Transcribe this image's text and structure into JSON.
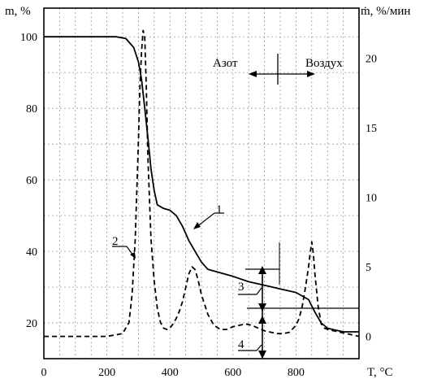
{
  "chart_data": {
    "type": "line",
    "title": "",
    "xlabel": "T, °C",
    "ylabel_left": "m, %",
    "ylabel_right": "ṁ, %/мин",
    "xlim": [
      0,
      1000
    ],
    "ylim_left": [
      10,
      108
    ],
    "ylim_right": [
      -1.6,
      23.6
    ],
    "grid": true,
    "legend": "none",
    "x_ticks": [
      "0",
      "200",
      "400",
      "600",
      "800"
    ],
    "y_left_ticks": [
      "20",
      "40",
      "60",
      "80",
      "100"
    ],
    "y_right_ticks": [
      "0",
      "5",
      "10",
      "15",
      "20"
    ],
    "series": [
      {
        "axis": "left",
        "style": "solid",
        "x": [
          0,
          120,
          230,
          260,
          285,
          300,
          310,
          320,
          330,
          340,
          350,
          360,
          380,
          400,
          420,
          440,
          460,
          480,
          500,
          520,
          540,
          600,
          650,
          700,
          750,
          800,
          840,
          860,
          880,
          900,
          950,
          1000
        ],
        "y": [
          100,
          100,
          100,
          99.5,
          97,
          93,
          88,
          80,
          72,
          63,
          57,
          53,
          52,
          51.5,
          50,
          47,
          43,
          40,
          37,
          35,
          34.5,
          33,
          31.5,
          30.5,
          29.5,
          28.5,
          26.5,
          23,
          20,
          18.5,
          17.5,
          17.5
        ]
      },
      {
        "axis": "right",
        "style": "dashed",
        "x": [
          0,
          200,
          250,
          270,
          280,
          290,
          300,
          305,
          310,
          315,
          320,
          325,
          330,
          340,
          350,
          360,
          370,
          380,
          390,
          400,
          410,
          420,
          430,
          440,
          450,
          460,
          470,
          480,
          490,
          500,
          520,
          540,
          560,
          580,
          600,
          620,
          640,
          660,
          680,
          700,
          720,
          740,
          760,
          780,
          800,
          810,
          820,
          830,
          840,
          845,
          850,
          855,
          860,
          870,
          880,
          890,
          900,
          920,
          940,
          960,
          1000
        ],
        "y": [
          0,
          0,
          0.2,
          1,
          3,
          7,
          14,
          18,
          20.5,
          22,
          21.5,
          18,
          13,
          7,
          4,
          2,
          1,
          0.6,
          0.5,
          0.6,
          0.9,
          1.3,
          1.8,
          2.5,
          3.5,
          4.5,
          5,
          4.8,
          4,
          3,
          1.6,
          0.8,
          0.5,
          0.5,
          0.7,
          0.8,
          0.9,
          0.8,
          0.6,
          0.4,
          0.3,
          0.2,
          0.2,
          0.3,
          0.8,
          1.3,
          2.2,
          3.5,
          5,
          6,
          6.8,
          6,
          4.5,
          2.2,
          0.9,
          0.6,
          0.5,
          0.4,
          0.3,
          0.2,
          0
        ]
      }
    ],
    "annotations": [
      {
        "text": "Азот",
        "x": 720,
        "y": 96
      },
      {
        "text": "Воздух",
        "x": 850,
        "y": 96
      },
      {
        "text": "1",
        "x": 570,
        "y": 45
      },
      {
        "text": "2",
        "x": 240,
        "y": 36
      },
      {
        "text": "3",
        "x": 645,
        "y": 24
      },
      {
        "text": "4",
        "x": 645,
        "y": 13
      }
    ]
  }
}
